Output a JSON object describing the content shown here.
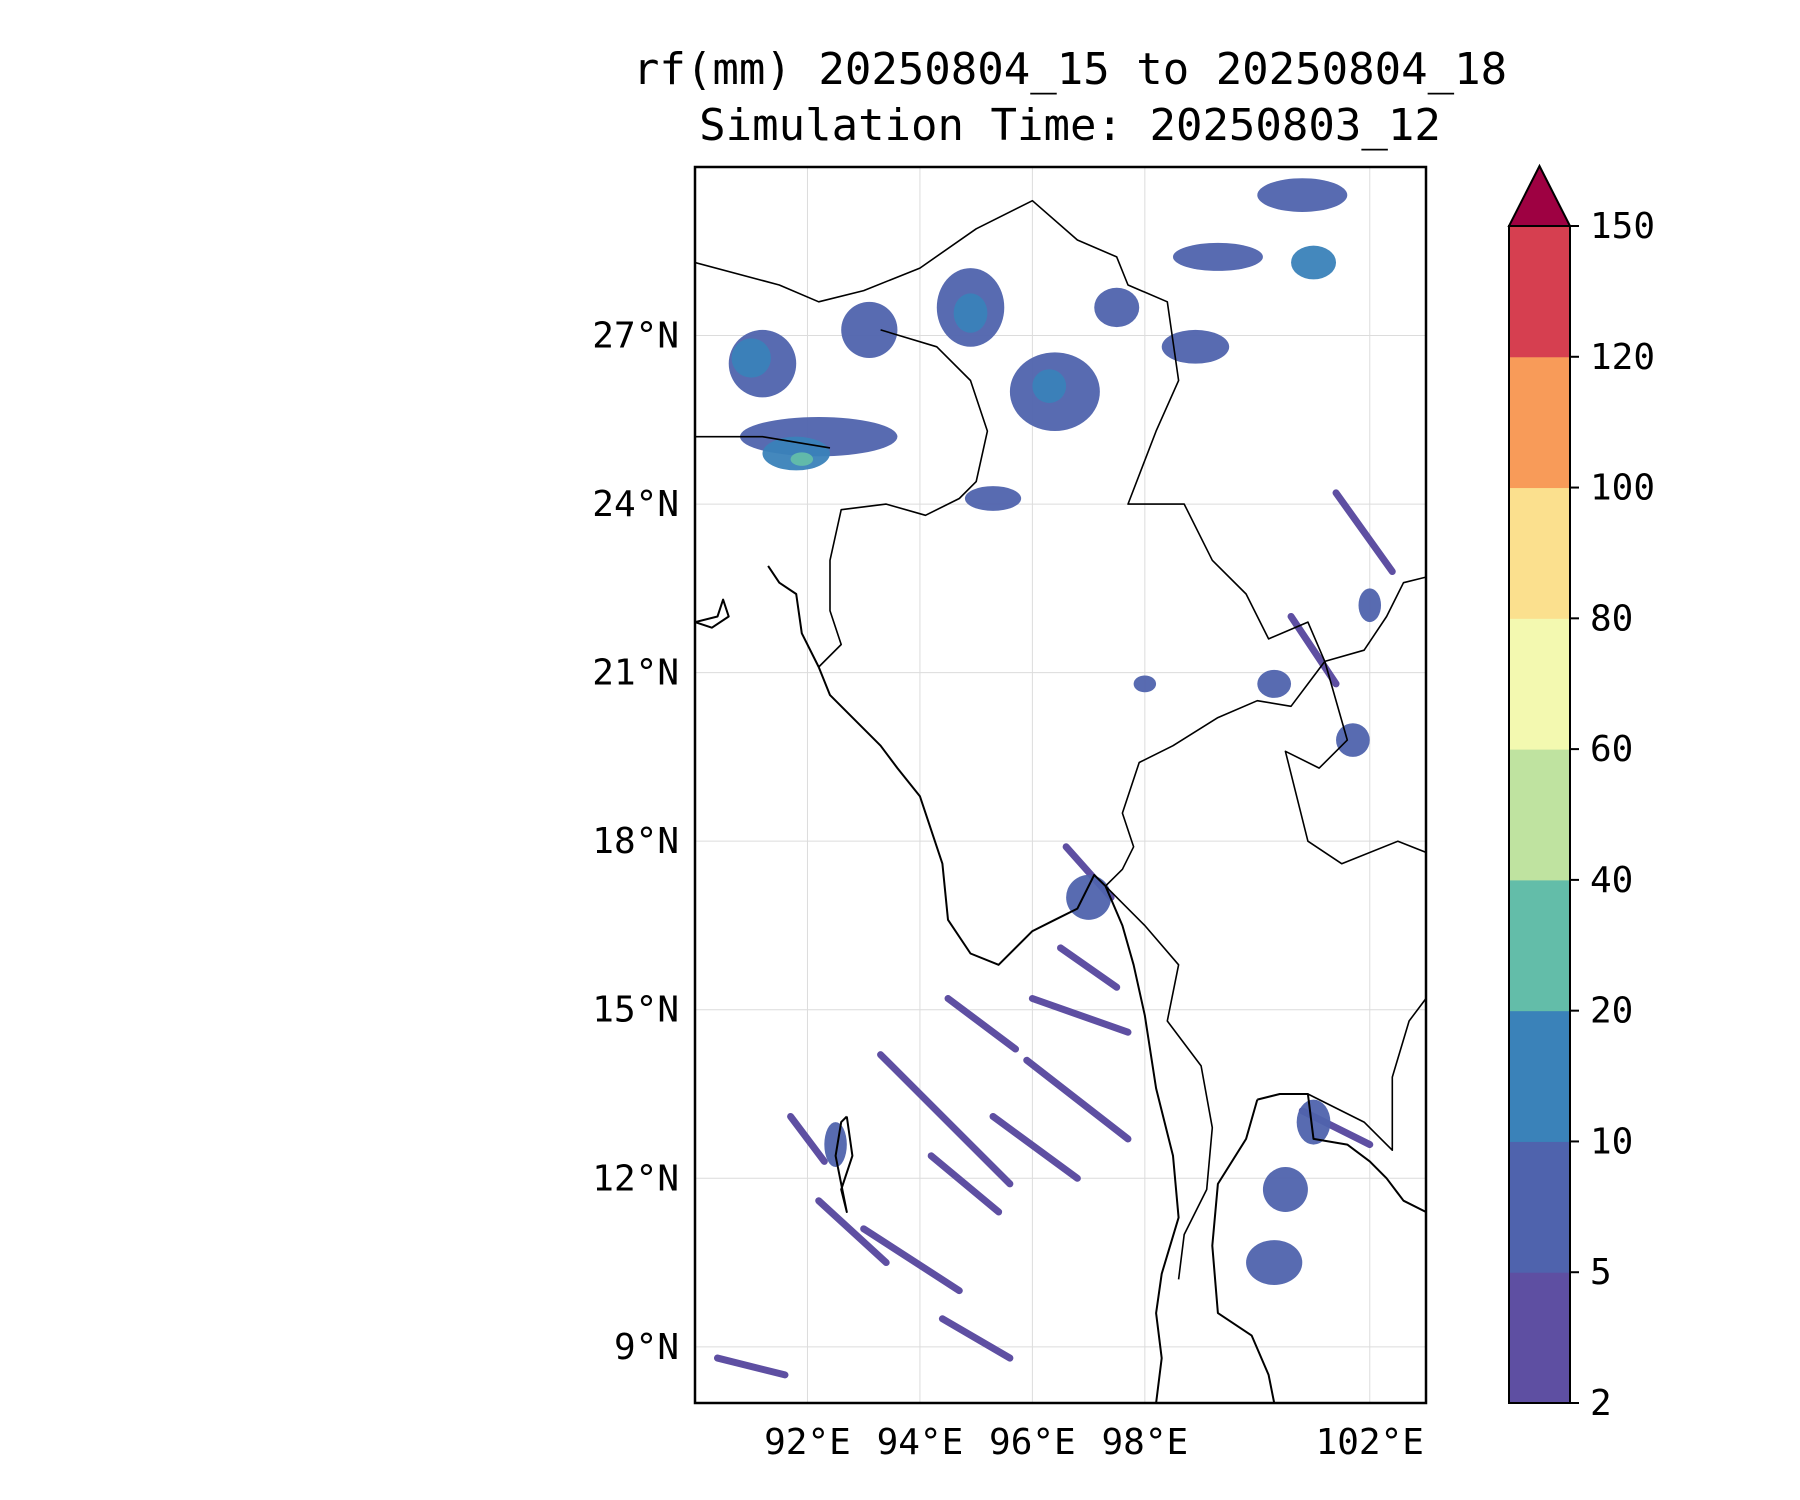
{
  "title": {
    "line1": "rf(mm) 20250804_15 to 20250804_18",
    "line2": "Simulation Time: 20250803_12"
  },
  "map": {
    "extent": {
      "lon_min": 90,
      "lon_max": 103,
      "lat_min": 8,
      "lat_max": 30
    },
    "gridlines": true,
    "x_ticks": [
      {
        "lon": 92,
        "label": "92°E"
      },
      {
        "lon": 94,
        "label": "94°E"
      },
      {
        "lon": 96,
        "label": "96°E"
      },
      {
        "lon": 98,
        "label": "98°E"
      },
      {
        "lon": 102,
        "label": "102°E"
      }
    ],
    "y_ticks": [
      {
        "lat": 27,
        "label": "27°N"
      },
      {
        "lat": 24,
        "label": "24°N"
      },
      {
        "lat": 21,
        "label": "21°N"
      },
      {
        "lat": 18,
        "label": "18°N"
      },
      {
        "lat": 15,
        "label": "15°N"
      },
      {
        "lat": 12,
        "label": "12°N"
      },
      {
        "lat": 9,
        "label": "9°N"
      }
    ]
  },
  "colorbar": {
    "levels": [
      "2",
      "5",
      "10",
      "20",
      "40",
      "60",
      "80",
      "100",
      "120",
      "150"
    ],
    "colors": [
      "#5e4fa2",
      "#4f63ad",
      "#3a82b9",
      "#63bda9",
      "#bfe3a0",
      "#f3f9b0",
      "#fbe08e",
      "#f89b59",
      "#d63f50"
    ],
    "extend_color": "#9e0142",
    "extend": "max"
  },
  "rain_cells": [
    {
      "lon": 91.2,
      "lat": 26.5,
      "rx": 0.6,
      "ry": 0.6,
      "level": 1
    },
    {
      "lon": 91.0,
      "lat": 26.6,
      "rx": 0.35,
      "ry": 0.35,
      "level": 2
    },
    {
      "lon": 92.2,
      "lat": 25.2,
      "rx": 1.4,
      "ry": 0.35,
      "level": 1
    },
    {
      "lon": 91.8,
      "lat": 24.9,
      "rx": 0.6,
      "ry": 0.3,
      "level": 2
    },
    {
      "lon": 91.9,
      "lat": 24.8,
      "rx": 0.2,
      "ry": 0.12,
      "level": 3
    },
    {
      "lon": 93.1,
      "lat": 27.1,
      "rx": 0.5,
      "ry": 0.5,
      "level": 1
    },
    {
      "lon": 94.9,
      "lat": 27.5,
      "rx": 0.6,
      "ry": 0.7,
      "level": 1
    },
    {
      "lon": 94.9,
      "lat": 27.4,
      "rx": 0.3,
      "ry": 0.35,
      "level": 2
    },
    {
      "lon": 96.4,
      "lat": 26.0,
      "rx": 0.8,
      "ry": 0.7,
      "level": 1
    },
    {
      "lon": 96.3,
      "lat": 26.1,
      "rx": 0.3,
      "ry": 0.3,
      "level": 2
    },
    {
      "lon": 97.5,
      "lat": 27.5,
      "rx": 0.4,
      "ry": 0.35,
      "level": 1
    },
    {
      "lon": 95.3,
      "lat": 24.1,
      "rx": 0.5,
      "ry": 0.22,
      "level": 1
    },
    {
      "lon": 100.8,
      "lat": 29.5,
      "rx": 0.8,
      "ry": 0.3,
      "level": 1
    },
    {
      "lon": 99.3,
      "lat": 28.4,
      "rx": 0.8,
      "ry": 0.25,
      "level": 1
    },
    {
      "lon": 98.9,
      "lat": 26.8,
      "rx": 0.6,
      "ry": 0.3,
      "level": 1
    },
    {
      "lon": 101.0,
      "lat": 28.3,
      "rx": 0.4,
      "ry": 0.3,
      "level": 2
    },
    {
      "lon": 98.0,
      "lat": 20.8,
      "rx": 0.2,
      "ry": 0.15,
      "level": 1
    },
    {
      "lon": 100.3,
      "lat": 20.8,
      "rx": 0.3,
      "ry": 0.25,
      "level": 1
    },
    {
      "lon": 101.7,
      "lat": 19.8,
      "rx": 0.3,
      "ry": 0.3,
      "level": 1
    },
    {
      "lon": 97.0,
      "lat": 17.0,
      "rx": 0.4,
      "ry": 0.4,
      "level": 1
    },
    {
      "lon": 101.0,
      "lat": 13.0,
      "rx": 0.3,
      "ry": 0.4,
      "level": 1
    },
    {
      "lon": 100.5,
      "lat": 11.8,
      "rx": 0.4,
      "ry": 0.4,
      "level": 1
    },
    {
      "lon": 100.3,
      "lat": 10.5,
      "rx": 0.5,
      "ry": 0.4,
      "level": 1
    },
    {
      "lon": 92.5,
      "lat": 12.6,
      "rx": 0.2,
      "ry": 0.4,
      "level": 1
    },
    {
      "lon": 102.0,
      "lat": 22.2,
      "rx": 0.2,
      "ry": 0.3,
      "level": 1
    }
  ],
  "rain_bands": [
    {
      "from": [
        93.3,
        14.2
      ],
      "to": [
        95.6,
        11.9
      ],
      "level": 0
    },
    {
      "from": [
        93.0,
        11.1
      ],
      "to": [
        94.7,
        10.0
      ],
      "level": 0
    },
    {
      "from": [
        95.3,
        13.1
      ],
      "to": [
        96.8,
        12.0
      ],
      "level": 0
    },
    {
      "from": [
        95.9,
        14.1
      ],
      "to": [
        97.7,
        12.7
      ],
      "level": 0
    },
    {
      "from": [
        96.0,
        15.2
      ],
      "to": [
        97.7,
        14.6
      ],
      "level": 0
    },
    {
      "from": [
        94.2,
        12.4
      ],
      "to": [
        95.4,
        11.4
      ],
      "level": 0
    },
    {
      "from": [
        92.2,
        11.6
      ],
      "to": [
        93.4,
        10.5
      ],
      "level": 0
    },
    {
      "from": [
        90.4,
        8.8
      ],
      "to": [
        91.6,
        8.5
      ],
      "level": 0
    },
    {
      "from": [
        96.5,
        16.1
      ],
      "to": [
        97.5,
        15.4
      ],
      "level": 0
    },
    {
      "from": [
        91.7,
        13.1
      ],
      "to": [
        92.3,
        12.3
      ],
      "level": 0
    },
    {
      "from": [
        94.5,
        15.2
      ],
      "to": [
        95.7,
        14.3
      ],
      "level": 0
    },
    {
      "from": [
        94.4,
        9.5
      ],
      "to": [
        95.6,
        8.8
      ],
      "level": 0
    },
    {
      "from": [
        100.8,
        13.2
      ],
      "to": [
        102.0,
        12.6
      ],
      "level": 0
    },
    {
      "from": [
        100.6,
        22.0
      ],
      "to": [
        101.4,
        20.8
      ],
      "level": 0
    },
    {
      "from": [
        101.4,
        24.2
      ],
      "to": [
        102.4,
        22.8
      ],
      "level": 0
    },
    {
      "from": [
        96.6,
        17.9
      ],
      "to": [
        97.4,
        17.0
      ],
      "level": 0
    }
  ],
  "borders": [
    [
      [
        90.0,
        28.3
      ],
      [
        91.5,
        27.9
      ],
      [
        92.2,
        27.6
      ],
      [
        93.0,
        27.8
      ],
      [
        94.0,
        28.2
      ],
      [
        95.0,
        28.9
      ],
      [
        96.0,
        29.4
      ],
      [
        96.8,
        28.7
      ],
      [
        97.5,
        28.4
      ],
      [
        97.7,
        27.9
      ],
      [
        98.4,
        27.6
      ],
      [
        98.6,
        26.2
      ],
      [
        98.2,
        25.3
      ],
      [
        97.7,
        24.0
      ],
      [
        98.7,
        24.0
      ],
      [
        99.2,
        23.0
      ],
      [
        99.8,
        22.4
      ],
      [
        100.2,
        21.6
      ],
      [
        100.9,
        21.9
      ],
      [
        101.2,
        21.2
      ],
      [
        100.9,
        20.8
      ],
      [
        100.6,
        20.4
      ],
      [
        100.0,
        20.5
      ],
      [
        99.3,
        20.2
      ],
      [
        98.5,
        19.7
      ],
      [
        97.9,
        19.4
      ],
      [
        97.6,
        18.5
      ],
      [
        97.8,
        17.9
      ],
      [
        97.6,
        17.5
      ],
      [
        97.3,
        17.2
      ]
    ],
    [
      [
        93.3,
        27.1
      ],
      [
        94.3,
        26.8
      ],
      [
        94.9,
        26.2
      ],
      [
        95.2,
        25.3
      ],
      [
        95.0,
        24.4
      ],
      [
        94.7,
        24.1
      ],
      [
        94.1,
        23.8
      ],
      [
        93.4,
        24.0
      ],
      [
        92.6,
        23.9
      ],
      [
        92.4,
        23.0
      ],
      [
        92.4,
        22.1
      ],
      [
        92.6,
        21.5
      ],
      [
        92.2,
        21.1
      ]
    ],
    [
      [
        92.4,
        25.0
      ],
      [
        91.2,
        25.2
      ],
      [
        90.0,
        25.2
      ]
    ],
    [
      [
        101.2,
        21.2
      ],
      [
        101.9,
        21.4
      ],
      [
        102.3,
        22.0
      ],
      [
        102.6,
        22.6
      ],
      [
        103.0,
        22.7
      ]
    ],
    [
      [
        101.2,
        21.2
      ],
      [
        101.6,
        19.8
      ],
      [
        101.1,
        19.3
      ],
      [
        100.5,
        19.6
      ],
      [
        100.9,
        18.0
      ],
      [
        101.5,
        17.6
      ],
      [
        102.5,
        18.0
      ],
      [
        103.0,
        17.8
      ]
    ],
    [
      [
        97.3,
        17.2
      ],
      [
        98.0,
        16.5
      ],
      [
        98.6,
        15.8
      ],
      [
        98.4,
        14.8
      ],
      [
        99.0,
        14.0
      ],
      [
        99.2,
        12.9
      ],
      [
        99.1,
        11.8
      ],
      [
        98.7,
        11.0
      ],
      [
        98.6,
        10.2
      ]
    ],
    [
      [
        100.9,
        13.5
      ],
      [
        101.9,
        13.0
      ],
      [
        102.4,
        12.5
      ],
      [
        102.4,
        13.8
      ],
      [
        102.7,
        14.8
      ],
      [
        103.0,
        15.2
      ]
    ]
  ],
  "coastlines": [
    [
      [
        92.2,
        21.1
      ],
      [
        92.4,
        20.6
      ],
      [
        92.9,
        20.1
      ],
      [
        93.3,
        19.7
      ],
      [
        93.6,
        19.3
      ],
      [
        94.0,
        18.8
      ],
      [
        94.4,
        17.6
      ],
      [
        94.5,
        16.6
      ],
      [
        94.9,
        16.0
      ],
      [
        95.4,
        15.8
      ],
      [
        96.0,
        16.4
      ],
      [
        96.4,
        16.6
      ],
      [
        96.8,
        16.8
      ],
      [
        97.1,
        17.4
      ],
      [
        97.3,
        17.2
      ],
      [
        97.6,
        16.5
      ],
      [
        97.8,
        15.8
      ],
      [
        98.0,
        14.9
      ],
      [
        98.2,
        13.6
      ],
      [
        98.5,
        12.4
      ],
      [
        98.6,
        11.3
      ],
      [
        98.3,
        10.3
      ],
      [
        98.2,
        9.6
      ],
      [
        98.3,
        8.8
      ],
      [
        98.2,
        8.0
      ]
    ],
    [
      [
        92.2,
        21.1
      ],
      [
        91.9,
        21.7
      ],
      [
        91.8,
        22.4
      ],
      [
        91.5,
        22.6
      ],
      [
        91.3,
        22.9
      ]
    ],
    [
      [
        100.0,
        13.4
      ],
      [
        99.8,
        12.7
      ],
      [
        99.3,
        11.9
      ],
      [
        99.2,
        10.8
      ],
      [
        99.3,
        9.6
      ],
      [
        99.9,
        9.2
      ],
      [
        100.2,
        8.5
      ],
      [
        100.3,
        8.0
      ]
    ],
    [
      [
        100.0,
        13.4
      ],
      [
        100.4,
        13.5
      ],
      [
        100.9,
        13.5
      ],
      [
        101.0,
        12.7
      ],
      [
        101.6,
        12.6
      ],
      [
        102.0,
        12.3
      ],
      [
        102.3,
        12.0
      ],
      [
        102.6,
        11.6
      ],
      [
        103.0,
        11.4
      ]
    ],
    [
      [
        92.7,
        13.1
      ],
      [
        92.8,
        12.4
      ],
      [
        92.6,
        11.8
      ],
      [
        92.7,
        11.4
      ],
      [
        92.5,
        12.4
      ],
      [
        92.6,
        13.0
      ],
      [
        92.7,
        13.1
      ]
    ],
    [
      [
        90.0,
        21.9
      ],
      [
        90.4,
        22.0
      ],
      [
        90.5,
        22.3
      ],
      [
        90.6,
        22.0
      ],
      [
        90.3,
        21.8
      ],
      [
        90.0,
        21.9
      ]
    ]
  ]
}
